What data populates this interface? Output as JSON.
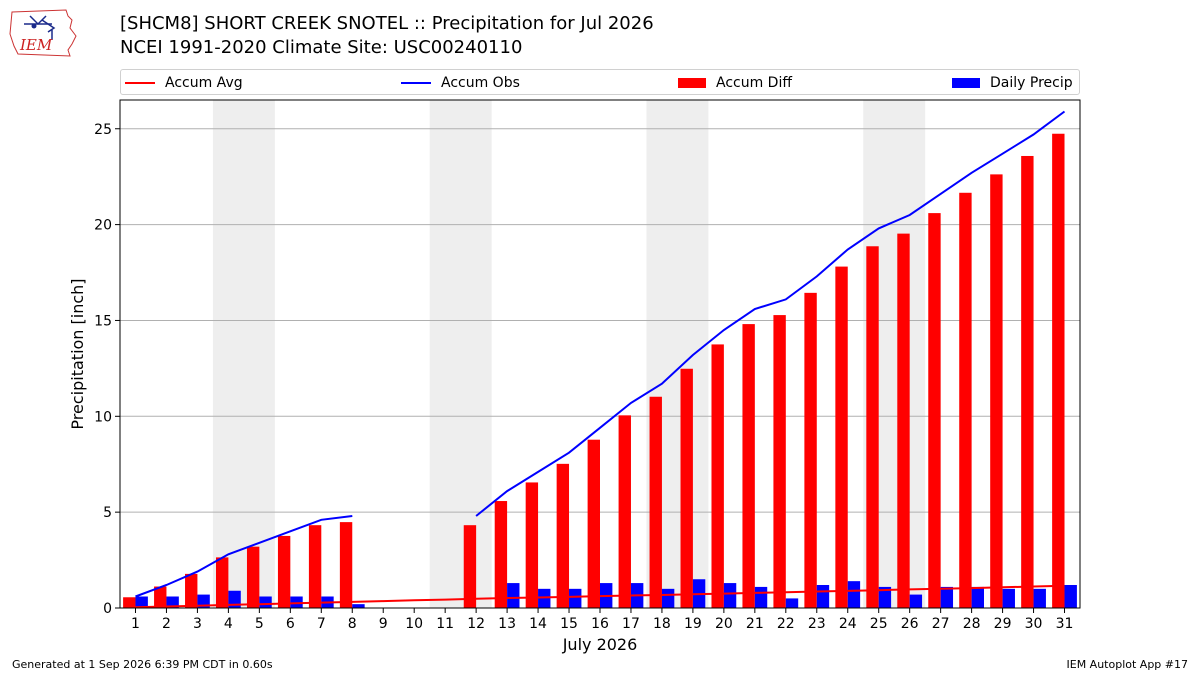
{
  "header": {
    "title_line1": "[SHCM8] SHORT CREEK SNOTEL :: Precipitation for Jul 2026",
    "title_line2": "NCEI 1991-2020 Climate Site: USC00240110",
    "logo_text": "IEM"
  },
  "legend": {
    "accum_avg": "Accum Avg",
    "accum_obs": "Accum Obs",
    "accum_diff": "Accum Diff",
    "daily_precip": "Daily Precip"
  },
  "colors": {
    "accum_avg": "#ff0000",
    "accum_obs": "#0000ff",
    "accum_diff": "#ff0000",
    "daily_precip": "#0000ff",
    "weekend_shade": "#eeeeee",
    "grid": "#b0b0b0"
  },
  "footer": {
    "left": "Generated at 1 Sep 2026 6:39 PM CDT in 0.60s",
    "right": "IEM Autoplot App #17"
  },
  "chart_data": {
    "type": "bar",
    "xlabel": "July 2026",
    "ylabel": "Precipitation [inch]",
    "xlim": [
      0.5,
      31.5
    ],
    "ylim": [
      0,
      26.5
    ],
    "yticks": [
      0,
      5,
      10,
      15,
      20,
      25
    ],
    "grid": true,
    "legend_position": "top",
    "categories": [
      "1",
      "2",
      "3",
      "4",
      "5",
      "6",
      "7",
      "8",
      "9",
      "10",
      "11",
      "12",
      "13",
      "14",
      "15",
      "16",
      "17",
      "18",
      "19",
      "20",
      "21",
      "22",
      "23",
      "24",
      "25",
      "26",
      "27",
      "28",
      "29",
      "30",
      "31"
    ],
    "shaded_day_ranges": [
      [
        4,
        5
      ],
      [
        11,
        12
      ],
      [
        18,
        19
      ],
      [
        25,
        26
      ]
    ],
    "series": [
      {
        "name": "Accum Avg",
        "kind": "line",
        "values": [
          0.04,
          0.08,
          0.12,
          0.16,
          0.2,
          0.24,
          0.28,
          0.32,
          0.36,
          0.4,
          0.44,
          0.48,
          0.52,
          0.55,
          0.58,
          0.62,
          0.65,
          0.68,
          0.72,
          0.75,
          0.79,
          0.82,
          0.86,
          0.89,
          0.93,
          0.97,
          1.0,
          1.04,
          1.08,
          1.12,
          1.16
        ]
      },
      {
        "name": "Accum Obs",
        "kind": "line",
        "values": [
          0.6,
          1.2,
          1.9,
          2.8,
          3.4,
          4.0,
          4.6,
          4.8,
          null,
          null,
          null,
          4.8,
          6.1,
          7.1,
          8.1,
          9.4,
          10.7,
          11.7,
          13.2,
          14.5,
          15.6,
          16.1,
          17.3,
          18.7,
          19.8,
          20.5,
          21.6,
          22.7,
          23.7,
          24.7,
          25.9
        ]
      },
      {
        "name": "Accum Diff",
        "kind": "bar",
        "values": [
          0.56,
          1.12,
          1.78,
          2.64,
          3.2,
          3.76,
          4.32,
          4.48,
          null,
          null,
          null,
          4.32,
          5.58,
          6.55,
          7.52,
          8.78,
          10.05,
          11.02,
          12.48,
          13.75,
          14.81,
          15.28,
          16.44,
          17.81,
          18.87,
          19.53,
          20.6,
          21.66,
          22.62,
          23.58,
          24.74
        ]
      },
      {
        "name": "Daily Precip",
        "kind": "bar",
        "values": [
          0.6,
          0.6,
          0.7,
          0.9,
          0.6,
          0.6,
          0.6,
          0.2,
          null,
          null,
          null,
          0,
          1.3,
          1.0,
          1.0,
          1.3,
          1.3,
          1.0,
          1.5,
          1.3,
          1.1,
          0.5,
          1.2,
          1.4,
          1.1,
          0.7,
          1.1,
          1.1,
          1.0,
          1.0,
          1.2
        ]
      }
    ]
  }
}
